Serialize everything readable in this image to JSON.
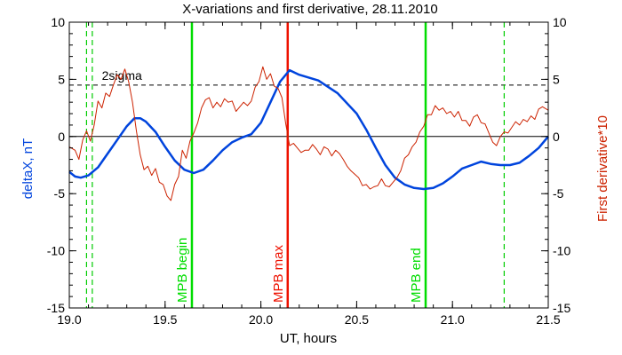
{
  "chart_data": {
    "type": "line",
    "title": "X-variations and first derivative, 28.11.2010",
    "xlabel": "UT, hours",
    "ylabel_left": "deltaX, nT",
    "ylabel_right": "First derivative*10",
    "xlim": [
      19.0,
      21.5
    ],
    "ylim": [
      -15,
      10
    ],
    "x_ticks": [
      19.0,
      19.5,
      20.0,
      20.5,
      21.0,
      21.5
    ],
    "x_tick_labels": [
      "19.0",
      "19.5",
      "20.0",
      "20.5",
      "21.0",
      "21.5"
    ],
    "y_ticks": [
      -15,
      -10,
      -5,
      0,
      5,
      10
    ],
    "y_tick_labels": [
      "-15",
      "-10",
      "-5",
      "0",
      "5",
      "10"
    ],
    "colors": {
      "deltaX": "#0044dd",
      "derivative": "#cc2200",
      "mpb_begin": "#00dd00",
      "mpb_max": "#ee1100",
      "mpb_end": "#00dd00",
      "dashed_green": "#00cc00",
      "zero_line": "#000000",
      "sigma_line": "#000000"
    },
    "series": [
      {
        "key": "deltaX",
        "points": [
          [
            19.0,
            -3.1
          ],
          [
            19.03,
            -3.5
          ],
          [
            19.06,
            -3.6
          ],
          [
            19.1,
            -3.4
          ],
          [
            19.15,
            -2.7
          ],
          [
            19.2,
            -1.5
          ],
          [
            19.25,
            -0.3
          ],
          [
            19.3,
            0.9
          ],
          [
            19.34,
            1.6
          ],
          [
            19.37,
            1.6
          ],
          [
            19.4,
            1.3
          ],
          [
            19.45,
            0.4
          ],
          [
            19.5,
            -0.9
          ],
          [
            19.55,
            -2.1
          ],
          [
            19.6,
            -2.9
          ],
          [
            19.65,
            -3.2
          ],
          [
            19.7,
            -2.9
          ],
          [
            19.75,
            -2.1
          ],
          [
            19.8,
            -1.2
          ],
          [
            19.85,
            -0.5
          ],
          [
            19.9,
            -0.1
          ],
          [
            19.95,
            0.2
          ],
          [
            20.0,
            1.2
          ],
          [
            20.05,
            3.0
          ],
          [
            20.1,
            4.8
          ],
          [
            20.15,
            5.8
          ],
          [
            20.2,
            5.4
          ],
          [
            20.3,
            4.9
          ],
          [
            20.4,
            3.8
          ],
          [
            20.5,
            2.0
          ],
          [
            20.55,
            0.6
          ],
          [
            20.6,
            -1.0
          ],
          [
            20.65,
            -2.5
          ],
          [
            20.7,
            -3.6
          ],
          [
            20.75,
            -4.2
          ],
          [
            20.8,
            -4.5
          ],
          [
            20.85,
            -4.6
          ],
          [
            20.9,
            -4.5
          ],
          [
            20.95,
            -4.1
          ],
          [
            21.0,
            -3.5
          ],
          [
            21.05,
            -2.8
          ],
          [
            21.1,
            -2.5
          ],
          [
            21.15,
            -2.2
          ],
          [
            21.2,
            -2.4
          ],
          [
            21.25,
            -2.5
          ],
          [
            21.3,
            -2.5
          ],
          [
            21.35,
            -2.3
          ],
          [
            21.4,
            -1.7
          ],
          [
            21.45,
            -1.0
          ],
          [
            21.5,
            0.0
          ]
        ]
      },
      {
        "key": "derivative",
        "points": [
          [
            19.0,
            -0.9
          ],
          [
            19.03,
            -1.2
          ],
          [
            19.05,
            -2.0
          ],
          [
            19.07,
            -0.3
          ],
          [
            19.09,
            0.5
          ],
          [
            19.11,
            -0.4
          ],
          [
            19.13,
            1.0
          ],
          [
            19.15,
            3.1
          ],
          [
            19.17,
            2.5
          ],
          [
            19.19,
            3.8
          ],
          [
            19.21,
            3.5
          ],
          [
            19.23,
            4.5
          ],
          [
            19.25,
            5.4
          ],
          [
            19.27,
            5.0
          ],
          [
            19.29,
            5.9
          ],
          [
            19.31,
            4.8
          ],
          [
            19.33,
            3.0
          ],
          [
            19.35,
            0.5
          ],
          [
            19.37,
            -1.6
          ],
          [
            19.39,
            -2.9
          ],
          [
            19.41,
            -2.6
          ],
          [
            19.43,
            -3.4
          ],
          [
            19.45,
            -2.8
          ],
          [
            19.47,
            -4.0
          ],
          [
            19.49,
            -4.2
          ],
          [
            19.51,
            -5.2
          ],
          [
            19.53,
            -5.6
          ],
          [
            19.55,
            -4.2
          ],
          [
            19.57,
            -3.5
          ],
          [
            19.59,
            -1.2
          ],
          [
            19.61,
            -1.9
          ],
          [
            19.63,
            -0.4
          ],
          [
            19.65,
            0.3
          ],
          [
            19.67,
            1.2
          ],
          [
            19.69,
            2.5
          ],
          [
            19.71,
            3.2
          ],
          [
            19.73,
            3.4
          ],
          [
            19.75,
            2.5
          ],
          [
            19.77,
            3.0
          ],
          [
            19.79,
            2.6
          ],
          [
            19.81,
            3.3
          ],
          [
            19.83,
            3.0
          ],
          [
            19.85,
            3.1
          ],
          [
            19.87,
            2.2
          ],
          [
            19.89,
            2.6
          ],
          [
            19.91,
            3.0
          ],
          [
            19.93,
            2.7
          ],
          [
            19.95,
            3.1
          ],
          [
            19.97,
            4.3
          ],
          [
            19.99,
            4.8
          ],
          [
            20.01,
            6.1
          ],
          [
            20.03,
            5.0
          ],
          [
            20.05,
            5.5
          ],
          [
            20.07,
            4.4
          ],
          [
            20.09,
            4.2
          ],
          [
            20.11,
            3.4
          ],
          [
            20.13,
            1.1
          ],
          [
            20.15,
            -0.8
          ],
          [
            20.17,
            -0.6
          ],
          [
            20.19,
            -1.0
          ],
          [
            20.21,
            -1.4
          ],
          [
            20.23,
            -1.2
          ],
          [
            20.25,
            -1.2
          ],
          [
            20.27,
            -0.7
          ],
          [
            20.29,
            -1.1
          ],
          [
            20.31,
            -1.6
          ],
          [
            20.33,
            -0.9
          ],
          [
            20.35,
            -1.1
          ],
          [
            20.37,
            -1.7
          ],
          [
            20.39,
            -1.2
          ],
          [
            20.41,
            -1.5
          ],
          [
            20.43,
            -2.0
          ],
          [
            20.45,
            -2.6
          ],
          [
            20.47,
            -3.0
          ],
          [
            20.49,
            -3.3
          ],
          [
            20.51,
            -3.6
          ],
          [
            20.53,
            -4.3
          ],
          [
            20.55,
            -4.2
          ],
          [
            20.57,
            -4.6
          ],
          [
            20.59,
            -4.4
          ],
          [
            20.61,
            -4.3
          ],
          [
            20.63,
            -3.7
          ],
          [
            20.65,
            -4.3
          ],
          [
            20.67,
            -4.4
          ],
          [
            20.69,
            -4.0
          ],
          [
            20.71,
            -3.6
          ],
          [
            20.73,
            -3.0
          ],
          [
            20.75,
            -1.9
          ],
          [
            20.77,
            -1.6
          ],
          [
            20.79,
            -0.9
          ],
          [
            20.81,
            -0.5
          ],
          [
            20.83,
            0.4
          ],
          [
            20.85,
            0.9
          ],
          [
            20.87,
            1.9
          ],
          [
            20.89,
            1.9
          ],
          [
            20.91,
            2.7
          ],
          [
            20.93,
            2.3
          ],
          [
            20.95,
            2.5
          ],
          [
            20.97,
            2.0
          ],
          [
            20.99,
            2.2
          ],
          [
            21.01,
            1.7
          ],
          [
            21.03,
            2.2
          ],
          [
            21.05,
            1.4
          ],
          [
            21.07,
            1.4
          ],
          [
            21.09,
            0.9
          ],
          [
            21.11,
            1.7
          ],
          [
            21.13,
            1.9
          ],
          [
            21.15,
            1.2
          ],
          [
            21.17,
            1.1
          ],
          [
            21.19,
            0.3
          ],
          [
            21.21,
            -0.5
          ],
          [
            21.23,
            -0.8
          ],
          [
            21.25,
            0.0
          ],
          [
            21.27,
            0.4
          ],
          [
            21.29,
            0.3
          ],
          [
            21.31,
            0.8
          ],
          [
            21.33,
            1.3
          ],
          [
            21.35,
            1.0
          ],
          [
            21.37,
            1.5
          ],
          [
            21.39,
            1.3
          ],
          [
            21.41,
            1.8
          ],
          [
            21.43,
            1.5
          ],
          [
            21.45,
            2.4
          ],
          [
            21.47,
            2.6
          ],
          [
            21.5,
            2.3
          ]
        ]
      }
    ],
    "hlines": [
      {
        "key": "zero",
        "y": 0,
        "style": "solid"
      },
      {
        "key": "sigma",
        "y": 4.5,
        "style": "dashed",
        "label": "2sigma"
      }
    ],
    "vlines": [
      {
        "key": "dash1",
        "x": 19.09,
        "style": "dashed",
        "color_key": "dashed_green"
      },
      {
        "key": "dash2",
        "x": 19.12,
        "style": "dashed",
        "color_key": "dashed_green"
      },
      {
        "key": "mpb-begin",
        "x": 19.64,
        "style": "solid",
        "color_key": "mpb_begin",
        "label": "MPB begin"
      },
      {
        "key": "mpb-max",
        "x": 20.14,
        "style": "solid",
        "color_key": "mpb_max",
        "label": "MPB max"
      },
      {
        "key": "mpb-end",
        "x": 20.86,
        "style": "solid",
        "color_key": "mpb_end",
        "label": "MPB end"
      },
      {
        "key": "dash3",
        "x": 21.27,
        "style": "dashed",
        "color_key": "dashed_green"
      }
    ]
  }
}
